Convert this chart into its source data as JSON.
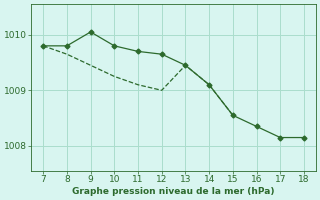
{
  "x_line1": [
    7,
    8,
    9,
    10,
    11,
    12,
    13,
    14,
    15,
    16,
    17,
    18
  ],
  "y_line1": [
    1009.8,
    1009.8,
    1010.05,
    1009.8,
    1009.7,
    1009.65,
    1009.45,
    1009.1,
    1008.55,
    1008.35,
    1008.15,
    1008.15
  ],
  "x_line2": [
    7,
    8,
    9,
    10,
    11,
    12,
    13,
    14,
    15
  ],
  "y_line2": [
    1009.8,
    1009.65,
    1009.45,
    1009.25,
    1009.1,
    1009.0,
    1009.45,
    1009.1,
    1008.55
  ],
  "line_color": "#2d6a2d",
  "bg_color": "#d8f5f0",
  "grid_color": "#aaddcc",
  "xlabel": "Graphe pression niveau de la mer (hPa)",
  "yticks": [
    1008,
    1009,
    1010
  ],
  "xticks": [
    7,
    8,
    9,
    10,
    11,
    12,
    13,
    14,
    15,
    16,
    17,
    18
  ],
  "ylim": [
    1007.55,
    1010.55
  ],
  "xlim": [
    6.5,
    18.5
  ]
}
